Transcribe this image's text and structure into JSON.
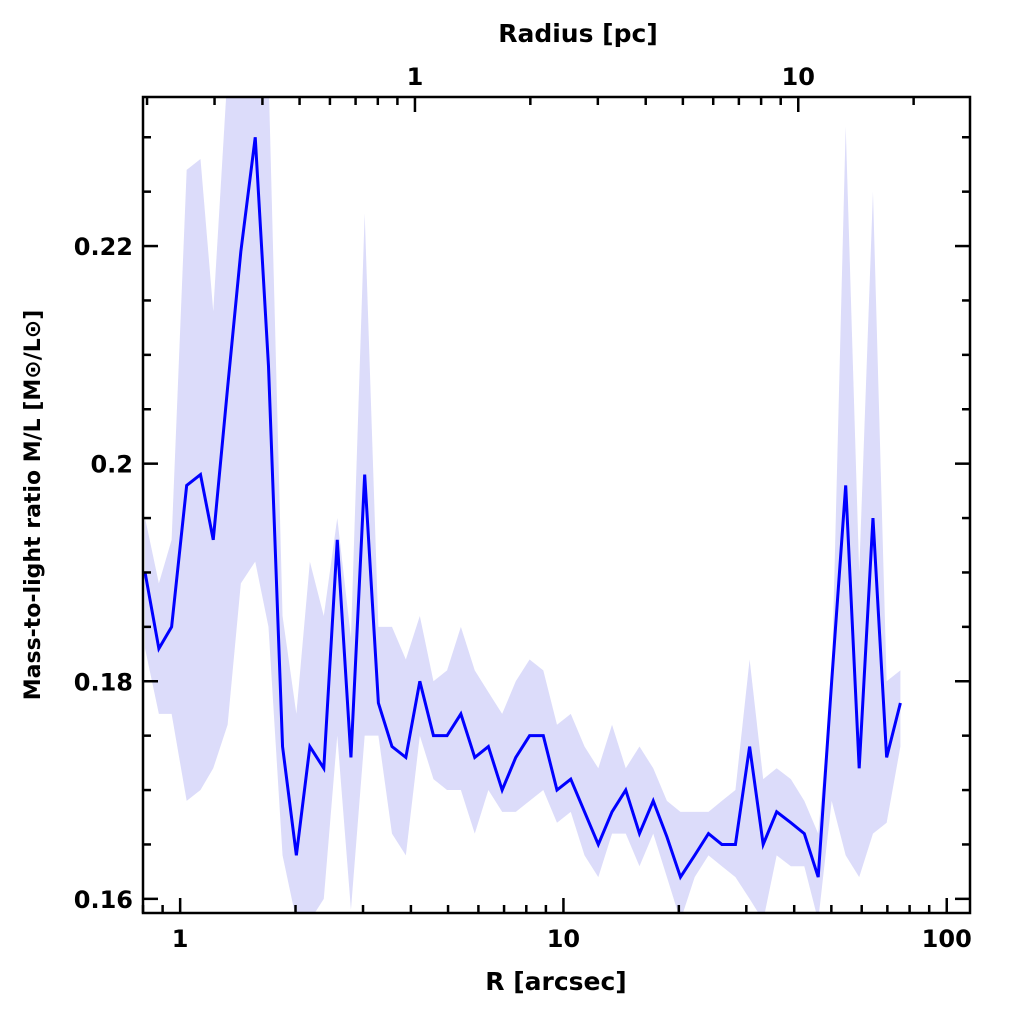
{
  "chart_data": {
    "type": "line",
    "title": "",
    "xlabel": "R [arcsec]",
    "ylabel": "Mass-to-light ratio M/L [M⊙/L⊙]",
    "top_xlabel": "Radius [pc]",
    "xscale": "log",
    "xlim": [
      0.8,
      115
    ],
    "ylim": [
      0.1587,
      0.2337
    ],
    "top_axis_pc_per_arcsec": 0.244,
    "x_tick_labels": [
      "1",
      "10",
      "100"
    ],
    "x_tick_values": [
      1,
      10,
      100
    ],
    "top_tick_labels": [
      "1",
      "10"
    ],
    "top_tick_values": [
      1,
      10
    ],
    "y_tick_labels": [
      "0.16",
      "0.18",
      "0.2",
      "0.22"
    ],
    "y_tick_values": [
      0.16,
      0.18,
      0.2,
      0.22
    ],
    "y_minor_step": 0.005,
    "grid": false,
    "colors": {
      "line": "#0000ff",
      "band": "#dcdcfa",
      "axis": "#000000"
    },
    "series": [
      {
        "name": "M/L",
        "x": [
          0.81,
          0.88,
          0.95,
          1.04,
          1.13,
          1.22,
          1.33,
          1.44,
          1.57,
          1.7,
          1.85,
          2.01,
          2.18,
          2.37,
          2.57,
          2.79,
          3.03,
          3.29,
          3.57,
          3.88,
          4.22,
          4.58,
          4.97,
          5.4,
          5.87,
          6.37,
          6.92,
          7.51,
          8.16,
          8.86,
          9.62,
          10.45,
          11.35,
          12.33,
          13.39,
          14.54,
          15.79,
          17.15,
          18.62,
          20.2,
          22.0,
          23.9,
          25.9,
          28.1,
          30.6,
          33.2,
          36.0,
          39.2,
          42.5,
          46.2,
          50.1,
          54.5,
          59.1,
          64.2,
          69.7,
          75.7
        ],
        "y": [
          0.19,
          0.183,
          0.185,
          0.198,
          0.199,
          0.193,
          0.207,
          0.2195,
          0.23,
          0.209,
          0.174,
          0.164,
          0.174,
          0.172,
          0.193,
          0.173,
          0.199,
          0.178,
          0.174,
          0.173,
          0.18,
          0.175,
          0.175,
          0.177,
          0.173,
          0.174,
          0.17,
          0.173,
          0.175,
          0.175,
          0.17,
          0.171,
          0.168,
          0.165,
          0.168,
          0.17,
          0.166,
          0.169,
          0.1657,
          0.162,
          0.164,
          0.166,
          0.165,
          0.165,
          0.174,
          0.165,
          0.168,
          0.167,
          0.166,
          0.162,
          0.18,
          0.198,
          0.172,
          0.195,
          0.173,
          0.178
        ],
        "upper": [
          0.195,
          0.189,
          0.193,
          0.227,
          0.228,
          0.214,
          0.236,
          0.236,
          0.236,
          0.236,
          0.186,
          0.177,
          0.191,
          0.186,
          0.195,
          0.184,
          0.223,
          0.185,
          0.185,
          0.182,
          0.186,
          0.18,
          0.181,
          0.185,
          0.181,
          0.179,
          0.177,
          0.18,
          0.182,
          0.181,
          0.176,
          0.177,
          0.174,
          0.172,
          0.176,
          0.172,
          0.174,
          0.172,
          0.169,
          0.168,
          0.168,
          0.168,
          0.169,
          0.17,
          0.182,
          0.171,
          0.172,
          0.171,
          0.169,
          0.166,
          0.18,
          0.231,
          0.19,
          0.225,
          0.18,
          0.181
        ],
        "lower": [
          0.183,
          0.177,
          0.177,
          0.169,
          0.17,
          0.172,
          0.176,
          0.189,
          0.191,
          0.185,
          0.164,
          0.158,
          0.158,
          0.16,
          0.175,
          0.159,
          0.175,
          0.175,
          0.166,
          0.164,
          0.175,
          0.171,
          0.17,
          0.17,
          0.166,
          0.17,
          0.168,
          0.168,
          0.169,
          0.17,
          0.167,
          0.168,
          0.164,
          0.162,
          0.166,
          0.166,
          0.163,
          0.166,
          0.162,
          0.158,
          0.162,
          0.164,
          0.163,
          0.162,
          0.16,
          0.158,
          0.164,
          0.163,
          0.163,
          0.158,
          0.169,
          0.164,
          0.162,
          0.166,
          0.167,
          0.174
        ]
      }
    ]
  }
}
